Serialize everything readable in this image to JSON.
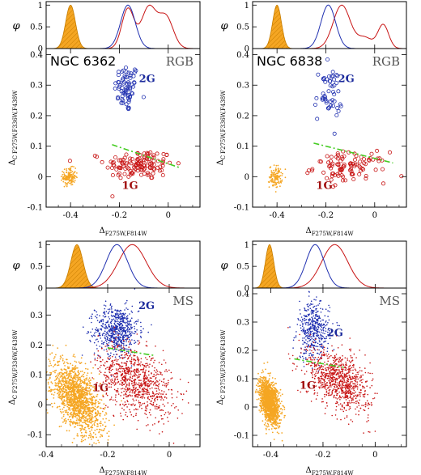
{
  "colors": {
    "first_generation": "#c81414",
    "second_generation": "#2030b0",
    "field_reference": "#f5a623",
    "separator": "#44cc22",
    "axes": "#000000"
  },
  "axis_labels": {
    "phi": "φ",
    "x_symbol": "Δ",
    "x_sub": "F275W,F814W",
    "y_symbol": "Δ",
    "y_sub_c": "C",
    "y_sub": "F275W,F336W,F438W"
  },
  "chart_data": [
    {
      "type": "scatter",
      "panel": "top-left",
      "cluster": "NGC 6362",
      "sequence": "RGB",
      "xlim": [
        -0.5,
        0.13
      ],
      "ylim": [
        -0.1,
        0.42
      ],
      "x_ticks": [
        "-0.4",
        "-0.2",
        "0"
      ],
      "x_tick_values": [
        -0.4,
        -0.2,
        0
      ],
      "y_ticks": [
        "-0.1",
        "0",
        "0.1",
        "0.2",
        "0.3",
        "0.4"
      ],
      "y_tick_values": [
        -0.1,
        0,
        0.1,
        0.2,
        0.3,
        0.4
      ],
      "phi_ticks": [
        "0",
        "0.5",
        "1"
      ],
      "labels": {
        "g2": "2G",
        "g1": "1G"
      },
      "label_positions": {
        "g2": [
          -0.12,
          0.31
        ],
        "g1": [
          -0.19,
          -0.04
        ]
      },
      "groups": [
        {
          "id": "2G",
          "cx": -0.17,
          "cy": 0.29,
          "sx": 0.025,
          "sy": 0.04,
          "n": 70,
          "marker": "circle"
        },
        {
          "id": "1G",
          "cx": -0.12,
          "cy": 0.04,
          "sx": 0.07,
          "sy": 0.025,
          "n": 130,
          "marker": "circle"
        },
        {
          "id": "reference",
          "cx": -0.405,
          "cy": 0.0,
          "sx": 0.013,
          "sy": 0.014,
          "n": 150,
          "marker": "dot"
        }
      ],
      "separator_line": [
        [
          -0.23,
          0.105
        ],
        [
          0.045,
          0.03
        ]
      ],
      "kde_reference": {
        "mu": -0.4,
        "sigma": 0.02,
        "peak": 1.0
      },
      "kde_2G": [
        {
          "mu": -0.165,
          "sigma": 0.03,
          "amp": 1.0
        }
      ],
      "kde_1G": [
        {
          "mu": -0.165,
          "sigma": 0.025,
          "amp": 0.78
        },
        {
          "mu": -0.08,
          "sigma": 0.03,
          "amp": 0.8
        },
        {
          "mu": -0.01,
          "sigma": 0.03,
          "amp": 0.62
        }
      ]
    },
    {
      "type": "scatter",
      "panel": "top-right",
      "cluster": "NGC 6838",
      "sequence": "RGB",
      "xlim": [
        -0.5,
        0.13
      ],
      "ylim": [
        -0.1,
        0.42
      ],
      "x_ticks": [
        "-0.4",
        "-0.2",
        "0"
      ],
      "x_tick_values": [
        -0.4,
        -0.2,
        0
      ],
      "y_ticks": [
        "-0.1",
        "0",
        "0.1",
        "0.2",
        "0.3",
        "0.4"
      ],
      "y_tick_values": [
        -0.1,
        0,
        0.1,
        0.2,
        0.3,
        0.4
      ],
      "phi_ticks": [
        "0",
        "0.5",
        "1"
      ],
      "labels": {
        "g2": "2G",
        "g1": "1G"
      },
      "label_positions": {
        "g2": [
          -0.15,
          0.31
        ],
        "g1": [
          -0.24,
          -0.04
        ]
      },
      "groups": [
        {
          "id": "2G",
          "cx": -0.19,
          "cy": 0.27,
          "sx": 0.028,
          "sy": 0.045,
          "n": 50,
          "marker": "circle"
        },
        {
          "id": "1G",
          "cx": -0.1,
          "cy": 0.03,
          "sx": 0.075,
          "sy": 0.025,
          "n": 100,
          "marker": "circle"
        },
        {
          "id": "reference",
          "cx": -0.405,
          "cy": 0.0,
          "sx": 0.013,
          "sy": 0.018,
          "n": 120,
          "marker": "dot"
        }
      ],
      "separator_line": [
        [
          -0.25,
          0.11
        ],
        [
          0.075,
          0.045
        ]
      ],
      "kde_reference": {
        "mu": -0.4,
        "sigma": 0.018,
        "peak": 1.0
      },
      "kde_2G": [
        {
          "mu": -0.19,
          "sigma": 0.03,
          "amp": 1.0
        }
      ],
      "kde_1G": [
        {
          "mu": -0.135,
          "sigma": 0.035,
          "amp": 1.0
        },
        {
          "mu": 0.035,
          "sigma": 0.022,
          "amp": 0.55
        },
        {
          "mu": -0.04,
          "sigma": 0.03,
          "amp": 0.25
        }
      ]
    },
    {
      "type": "scatter",
      "panel": "bottom-left",
      "cluster": "",
      "sequence": "MS",
      "xlim": [
        -0.4,
        0.1
      ],
      "ylim": [
        -0.14,
        0.39
      ],
      "x_ticks": [
        "-0.4",
        "-0.2",
        "0"
      ],
      "x_tick_values": [
        -0.4,
        -0.2,
        0
      ],
      "y_ticks": [
        "-0.1",
        "0",
        "0.1",
        "0.2",
        "0.3"
      ],
      "y_tick_values": [
        -0.1,
        0,
        0.1,
        0.2,
        0.3
      ],
      "phi_ticks": [
        "0",
        "0.5",
        "1"
      ],
      "labels": {
        "g2": "2G",
        "g1": "1G"
      },
      "label_positions": {
        "g2": [
          -0.1,
          0.32
        ],
        "g1": [
          -0.25,
          0.045
        ]
      },
      "groups": [
        {
          "id": "2G",
          "cx": -0.17,
          "cy": 0.25,
          "sx": 0.035,
          "sy": 0.04,
          "n": 650,
          "marker": "dot"
        },
        {
          "id": "1G",
          "cx": -0.11,
          "cy": 0.08,
          "sx": 0.06,
          "sy": 0.055,
          "n": 900,
          "marker": "dot"
        },
        {
          "id": "reference",
          "cx": -0.3,
          "cy": 0.02,
          "sx": 0.04,
          "sy": 0.05,
          "n": 1500,
          "marker": "dot"
        }
      ],
      "separator_line": [
        [
          -0.2,
          0.19
        ],
        [
          -0.05,
          0.165
        ]
      ],
      "kde_reference": {
        "mu": -0.3,
        "sigma": 0.02,
        "peak": 1.0
      },
      "kde_2G": [
        {
          "mu": -0.17,
          "sigma": 0.035,
          "amp": 1.0
        }
      ],
      "kde_1G": [
        {
          "mu": -0.12,
          "sigma": 0.045,
          "amp": 1.0
        }
      ]
    },
    {
      "type": "scatter",
      "panel": "bottom-right",
      "cluster": "",
      "sequence": "MS",
      "xlim": [
        -0.47,
        0.12
      ],
      "ylim": [
        -0.14,
        0.42
      ],
      "x_ticks": [
        "-0.4",
        "-0.2",
        "0"
      ],
      "x_tick_values": [
        -0.4,
        -0.2,
        0
      ],
      "y_ticks": [
        "-0.1",
        "0",
        "0.1",
        "0.2",
        "0.3",
        "0.4"
      ],
      "y_tick_values": [
        -0.1,
        0,
        0.1,
        0.2,
        0.3,
        0.4
      ],
      "phi_ticks": [
        "0",
        "0.5",
        "1"
      ],
      "labels": {
        "g2": "2G",
        "g1": "1G"
      },
      "label_positions": {
        "g2": [
          -0.185,
          0.25
        ],
        "g1": [
          -0.29,
          0.065
        ]
      },
      "groups": [
        {
          "id": "2G",
          "cx": -0.235,
          "cy": 0.27,
          "sx": 0.03,
          "sy": 0.05,
          "n": 450,
          "marker": "dot"
        },
        {
          "id": "1G",
          "cx": -0.14,
          "cy": 0.095,
          "sx": 0.06,
          "sy": 0.05,
          "n": 900,
          "marker": "dot"
        },
        {
          "id": "reference",
          "cx": -0.405,
          "cy": 0.02,
          "sx": 0.018,
          "sy": 0.035,
          "n": 1500,
          "marker": "dot"
        }
      ],
      "separator_line": [
        [
          -0.31,
          0.17
        ],
        [
          -0.12,
          0.14
        ]
      ],
      "kde_reference": {
        "mu": -0.405,
        "sigma": 0.016,
        "peak": 1.0
      },
      "kde_2G": [
        {
          "mu": -0.23,
          "sigma": 0.035,
          "amp": 1.0
        }
      ],
      "kde_1G": [
        {
          "mu": -0.155,
          "sigma": 0.05,
          "amp": 1.0
        }
      ]
    }
  ]
}
